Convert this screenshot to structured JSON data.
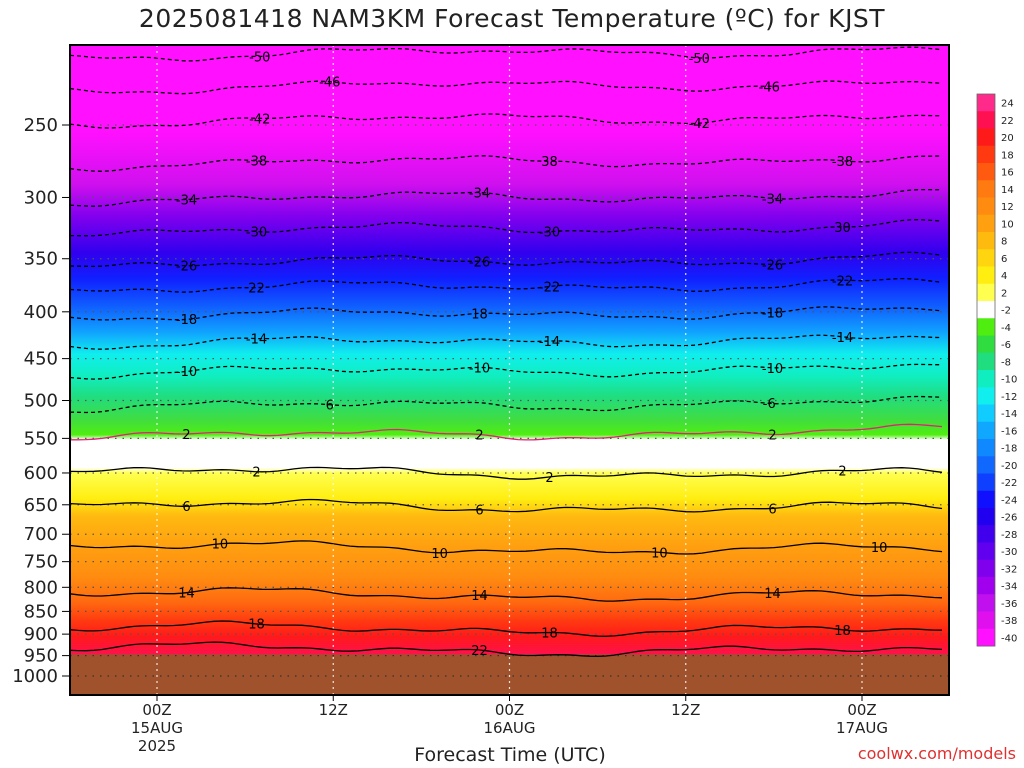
{
  "title": "2025081418 NAM3KM Forecast Temperature (ºC) for KJST",
  "xlabel": "Forecast Time (UTC)",
  "credit": "coolwx.com/models",
  "chart_data": {
    "type": "heatmap",
    "title": "2025081418 NAM3KM Forecast Temperature (ºC) for KJST",
    "xlabel": "Forecast Time (UTC)",
    "ylabel": "",
    "y_scale": "log-pressure",
    "y_axis_inverted": true,
    "ylim": [
      1050,
      200
    ],
    "xlim_hours": [
      -12,
      48
    ],
    "y_ticks": [
      250,
      300,
      350,
      400,
      450,
      500,
      550,
      600,
      650,
      700,
      750,
      800,
      850,
      900,
      950,
      1000
    ],
    "x_ticks": [
      {
        "hour": 0,
        "lines": [
          "00Z",
          "15AUG",
          "2025"
        ]
      },
      {
        "hour": 12,
        "lines": [
          "12Z"
        ]
      },
      {
        "hour": 24,
        "lines": [
          "00Z",
          "16AUG"
        ]
      },
      {
        "hour": 36,
        "lines": [
          "12Z"
        ]
      },
      {
        "hour": 48,
        "lines": [
          "00Z",
          "17AUG"
        ]
      }
    ],
    "grid": true,
    "colorbar_labels": [
      "24",
      "22",
      "20",
      "18",
      "16",
      "14",
      "12",
      "10",
      "8",
      "6",
      "4",
      "2",
      "-2",
      "-4",
      "-6",
      "-8",
      "-10",
      "-12",
      "-14",
      "-16",
      "-18",
      "-20",
      "-22",
      "-24",
      "-26",
      "-28",
      "-30",
      "-32",
      "-34",
      "-36",
      "-38",
      "-40"
    ],
    "colorbar_colors": [
      "#ff2a8a",
      "#ff1050",
      "#ff1a1a",
      "#ff3a10",
      "#ff5a10",
      "#ff7a10",
      "#ff8c10",
      "#ffa010",
      "#ffba10",
      "#ffd510",
      "#ffee10",
      "#ffff50",
      "#ffffff",
      "#50ee10",
      "#30dd40",
      "#20dd80",
      "#10eec0",
      "#10eeee",
      "#10ccff",
      "#10a8ff",
      "#1088ff",
      "#1068ff",
      "#1040ff",
      "#1010ff",
      "#2000ee",
      "#4000ee",
      "#6000ee",
      "#8000ee",
      "#a000ee",
      "#c010ee",
      "#e010ee",
      "#ff10ff"
    ],
    "ground_level_hpa": 947,
    "ground_color": "#a0522d",
    "contour_levels": [
      {
        "value": -50,
        "pressure": 210,
        "labels": [
          "-50",
          "-50"
        ]
      },
      {
        "value": -46,
        "pressure": 228,
        "labels": [
          "-46",
          "-46"
        ]
      },
      {
        "value": -42,
        "pressure": 248,
        "labels": [
          "-42",
          "-42"
        ]
      },
      {
        "value": -38,
        "pressure": 276,
        "labels": [
          "-38",
          "38",
          "-38"
        ]
      },
      {
        "value": -34,
        "pressure": 302,
        "labels": [
          "-34",
          "-34",
          "-34"
        ]
      },
      {
        "value": -30,
        "pressure": 327,
        "labels": [
          "-30",
          "-30",
          "30"
        ]
      },
      {
        "value": -26,
        "pressure": 355,
        "labels": [
          "-26",
          "-26",
          "-26"
        ]
      },
      {
        "value": -22,
        "pressure": 378,
        "labels": [
          "22",
          "-22",
          "-22"
        ]
      },
      {
        "value": -18,
        "pressure": 405,
        "labels": [
          "-18",
          "18",
          "-18"
        ]
      },
      {
        "value": -14,
        "pressure": 434,
        "labels": [
          "-14",
          "-14",
          "-14"
        ]
      },
      {
        "value": -10,
        "pressure": 467,
        "labels": [
          "-10",
          "-10",
          "-10"
        ]
      },
      {
        "value": -6,
        "pressure": 509,
        "labels": [
          "6",
          "-6"
        ]
      },
      {
        "value": -2,
        "pressure": 548,
        "labels": [
          "2",
          "2",
          "2"
        ]
      },
      {
        "value": 2,
        "pressure": 597,
        "labels": [
          "2",
          "2",
          "2"
        ]
      },
      {
        "value": 6,
        "pressure": 650,
        "labels": [
          "6",
          "6",
          "6"
        ]
      },
      {
        "value": 10,
        "pressure": 722,
        "labels": [
          "10",
          "10",
          "10",
          "10"
        ]
      },
      {
        "value": 14,
        "pressure": 812,
        "labels": [
          "14",
          "14",
          "14"
        ]
      },
      {
        "value": 18,
        "pressure": 885,
        "labels": [
          "18",
          "18",
          "18"
        ]
      },
      {
        "value": 22,
        "pressure": 932,
        "labels": [
          "22"
        ]
      }
    ]
  }
}
